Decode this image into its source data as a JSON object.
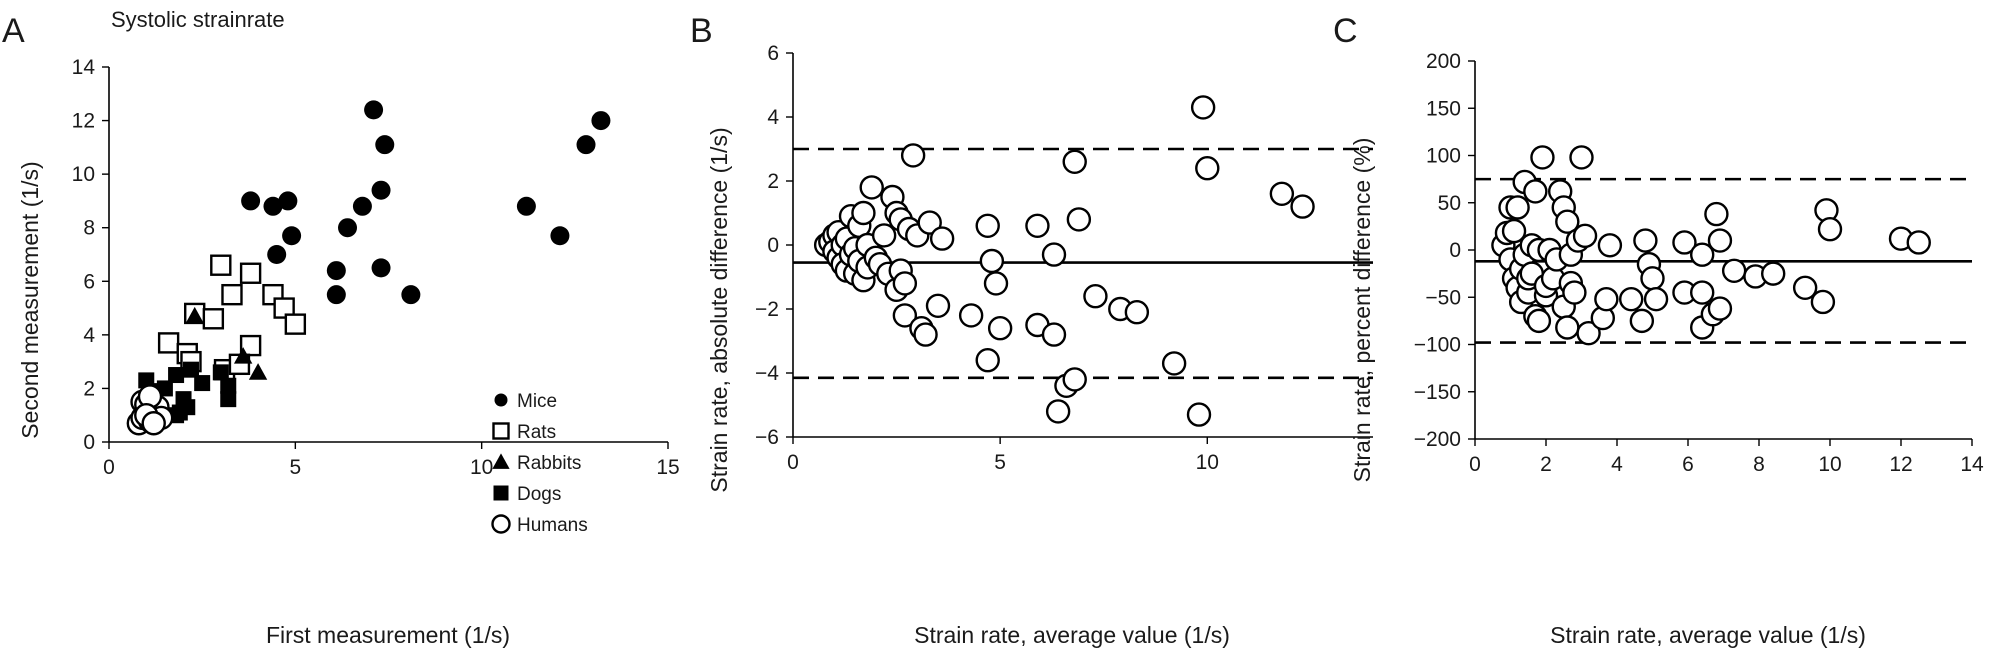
{
  "figure": {
    "background": "#ffffff",
    "ink": "#000000"
  },
  "chart_data": [
    {
      "type": "scatter",
      "panel_letter": "A",
      "title": "Systolic strainrate",
      "xlabel": "First measurement (1/s)",
      "ylabel": "Second measurement (1/s)",
      "xlim": [
        0,
        15
      ],
      "ylim": [
        0,
        14
      ],
      "x_ticks": [
        0,
        5,
        10,
        15
      ],
      "y_ticks": [
        0,
        2,
        4,
        6,
        8,
        10,
        12,
        14
      ],
      "grid": false,
      "legend_position": "bottom-right",
      "series": [
        {
          "name": "Mice",
          "marker": "filled-circle",
          "points": [
            [
              3.8,
              9.0
            ],
            [
              4.4,
              8.8
            ],
            [
              4.8,
              9.0
            ],
            [
              4.5,
              7.0
            ],
            [
              4.9,
              7.7
            ],
            [
              6.1,
              6.4
            ],
            [
              6.1,
              5.5
            ],
            [
              6.4,
              8.0
            ],
            [
              6.8,
              8.8
            ],
            [
              7.1,
              12.4
            ],
            [
              7.3,
              9.4
            ],
            [
              7.4,
              11.1
            ],
            [
              7.3,
              6.5
            ],
            [
              8.1,
              5.5
            ],
            [
              11.2,
              8.8
            ],
            [
              12.1,
              7.7
            ],
            [
              12.8,
              11.1
            ],
            [
              13.2,
              12.0
            ]
          ]
        },
        {
          "name": "Rats",
          "marker": "open-square",
          "points": [
            [
              3.0,
              6.6
            ],
            [
              3.8,
              6.3
            ],
            [
              3.3,
              5.5
            ],
            [
              4.4,
              5.5
            ],
            [
              4.7,
              5.0
            ],
            [
              5.0,
              4.4
            ],
            [
              2.3,
              4.8
            ],
            [
              2.8,
              4.6
            ],
            [
              1.6,
              3.7
            ],
            [
              2.1,
              3.3
            ],
            [
              2.2,
              3.0
            ],
            [
              3.8,
              3.6
            ],
            [
              3.1,
              2.7
            ],
            [
              3.5,
              2.9
            ]
          ]
        },
        {
          "name": "Rabbits",
          "marker": "filled-triangle",
          "points": [
            [
              2.3,
              4.7
            ],
            [
              3.6,
              3.2
            ],
            [
              4.0,
              2.6
            ]
          ]
        },
        {
          "name": "Dogs",
          "marker": "filled-square",
          "points": [
            [
              1.0,
              2.3
            ],
            [
              1.1,
              1.9
            ],
            [
              1.2,
              1.6
            ],
            [
              1.5,
              2.0
            ],
            [
              1.8,
              2.5
            ],
            [
              2.0,
              1.6
            ],
            [
              1.9,
              1.1
            ],
            [
              2.5,
              2.2
            ],
            [
              3.2,
              2.1
            ],
            [
              3.2,
              1.6
            ],
            [
              1.8,
              1.0
            ],
            [
              2.1,
              1.3
            ],
            [
              3.0,
              2.6
            ],
            [
              2.2,
              2.7
            ]
          ]
        },
        {
          "name": "Humans",
          "marker": "open-circle",
          "points": [
            [
              0.8,
              0.7
            ],
            [
              0.9,
              0.9
            ],
            [
              1.0,
              1.2
            ],
            [
              1.1,
              0.8
            ],
            [
              1.2,
              1.0
            ],
            [
              0.9,
              1.5
            ],
            [
              1.0,
              1.4
            ],
            [
              1.3,
              1.3
            ],
            [
              1.1,
              1.7
            ],
            [
              1.4,
              0.9
            ],
            [
              1.0,
              1.0
            ],
            [
              1.2,
              0.7
            ]
          ]
        }
      ]
    },
    {
      "type": "scatter",
      "panel_letter": "B",
      "title": "",
      "xlabel": "Strain rate, average value (1/s)",
      "ylabel": "Strain rate, absolute difference (1/s)",
      "xlim": [
        0,
        14
      ],
      "ylim": [
        -6,
        6
      ],
      "x_ticks": [
        0,
        5,
        10
      ],
      "y_ticks": [
        -6,
        -4,
        -2,
        0,
        2,
        4,
        6
      ],
      "grid": false,
      "reference_lines": [
        {
          "y": 3.0,
          "style": "dashed"
        },
        {
          "y": -0.55,
          "style": "solid"
        },
        {
          "y": -4.15,
          "style": "dashed"
        }
      ],
      "series": [
        {
          "marker": "open-circle",
          "points": [
            [
              0.8,
              0.0
            ],
            [
              0.9,
              0.1
            ],
            [
              1.0,
              0.3
            ],
            [
              1.1,
              0.4
            ],
            [
              1.0,
              -0.2
            ],
            [
              1.1,
              -0.4
            ],
            [
              1.2,
              0.0
            ],
            [
              1.2,
              -0.6
            ],
            [
              1.3,
              0.2
            ],
            [
              1.3,
              -0.8
            ],
            [
              1.4,
              -0.3
            ],
            [
              1.4,
              0.9
            ],
            [
              1.5,
              -0.1
            ],
            [
              1.5,
              -0.9
            ],
            [
              1.6,
              0.6
            ],
            [
              1.6,
              -0.5
            ],
            [
              1.7,
              1.0
            ],
            [
              1.7,
              -1.1
            ],
            [
              1.8,
              -0.7
            ],
            [
              1.8,
              0.0
            ],
            [
              1.9,
              1.8
            ],
            [
              2.0,
              -0.4
            ],
            [
              2.1,
              -0.6
            ],
            [
              2.2,
              0.3
            ],
            [
              2.3,
              -0.9
            ],
            [
              2.4,
              1.5
            ],
            [
              2.5,
              1.0
            ],
            [
              2.5,
              -1.4
            ],
            [
              2.6,
              0.8
            ],
            [
              2.6,
              -0.8
            ],
            [
              2.7,
              -1.2
            ],
            [
              2.7,
              -2.2
            ],
            [
              2.8,
              0.5
            ],
            [
              2.9,
              2.8
            ],
            [
              3.0,
              0.3
            ],
            [
              3.1,
              -2.6
            ],
            [
              3.2,
              -2.8
            ],
            [
              3.3,
              0.7
            ],
            [
              3.5,
              -1.9
            ],
            [
              3.6,
              0.2
            ],
            [
              4.3,
              -2.2
            ],
            [
              4.7,
              0.6
            ],
            [
              4.7,
              -3.6
            ],
            [
              4.8,
              -0.5
            ],
            [
              4.9,
              -1.2
            ],
            [
              5.0,
              -2.6
            ],
            [
              5.9,
              0.6
            ],
            [
              5.9,
              -2.5
            ],
            [
              6.3,
              -0.3
            ],
            [
              6.3,
              -2.8
            ],
            [
              6.4,
              -5.2
            ],
            [
              6.6,
              -4.4
            ],
            [
              6.8,
              2.6
            ],
            [
              6.8,
              -4.2
            ],
            [
              6.9,
              0.8
            ],
            [
              7.3,
              -1.6
            ],
            [
              7.9,
              -2.0
            ],
            [
              8.3,
              -2.1
            ],
            [
              9.2,
              -3.7
            ],
            [
              9.8,
              -5.3
            ],
            [
              9.9,
              4.3
            ],
            [
              10.0,
              2.4
            ],
            [
              11.8,
              1.6
            ],
            [
              12.3,
              1.2
            ]
          ]
        }
      ]
    },
    {
      "type": "scatter",
      "panel_letter": "C",
      "title": "",
      "xlabel": "Strain rate, average value (1/s)",
      "ylabel": "Strain rate, percent difference (%)",
      "xlim": [
        0,
        14
      ],
      "ylim": [
        -200,
        200
      ],
      "x_ticks": [
        0,
        2,
        4,
        6,
        8,
        10,
        12,
        14
      ],
      "y_ticks": [
        -200,
        -150,
        -100,
        -50,
        0,
        50,
        100,
        150,
        200
      ],
      "grid": false,
      "reference_lines": [
        {
          "y": 75,
          "style": "dashed"
        },
        {
          "y": -12,
          "style": "solid"
        },
        {
          "y": -98,
          "style": "dashed"
        }
      ],
      "series": [
        {
          "marker": "open-circle",
          "points": [
            [
              0.8,
              5
            ],
            [
              0.9,
              18
            ],
            [
              1.0,
              45
            ],
            [
              1.0,
              -10
            ],
            [
              1.1,
              -30
            ],
            [
              1.1,
              20
            ],
            [
              1.2,
              -40
            ],
            [
              1.2,
              45
            ],
            [
              1.3,
              -55
            ],
            [
              1.3,
              -20
            ],
            [
              1.4,
              72
            ],
            [
              1.4,
              -5
            ],
            [
              1.5,
              -45
            ],
            [
              1.5,
              -30
            ],
            [
              1.6,
              -25
            ],
            [
              1.6,
              5
            ],
            [
              1.7,
              62
            ],
            [
              1.7,
              -70
            ],
            [
              1.8,
              -75
            ],
            [
              1.8,
              0
            ],
            [
              1.9,
              98
            ],
            [
              2.0,
              -48
            ],
            [
              2.0,
              -38
            ],
            [
              2.1,
              0
            ],
            [
              2.2,
              -30
            ],
            [
              2.3,
              -10
            ],
            [
              2.4,
              62
            ],
            [
              2.5,
              45
            ],
            [
              2.5,
              -60
            ],
            [
              2.6,
              30
            ],
            [
              2.6,
              -82
            ],
            [
              2.7,
              -35
            ],
            [
              2.7,
              -5
            ],
            [
              2.8,
              -45
            ],
            [
              2.9,
              10
            ],
            [
              3.0,
              98
            ],
            [
              3.1,
              15
            ],
            [
              3.2,
              -88
            ],
            [
              3.6,
              -72
            ],
            [
              3.7,
              -52
            ],
            [
              3.8,
              5
            ],
            [
              4.4,
              -52
            ],
            [
              4.7,
              -75
            ],
            [
              4.8,
              10
            ],
            [
              4.9,
              -15
            ],
            [
              5.0,
              -30
            ],
            [
              5.1,
              -52
            ],
            [
              5.9,
              -45
            ],
            [
              5.9,
              8
            ],
            [
              6.4,
              -45
            ],
            [
              6.4,
              -82
            ],
            [
              6.4,
              -5
            ],
            [
              6.7,
              -68
            ],
            [
              6.8,
              38
            ],
            [
              6.9,
              10
            ],
            [
              6.9,
              -62
            ],
            [
              7.3,
              -22
            ],
            [
              7.9,
              -28
            ],
            [
              8.4,
              -25
            ],
            [
              9.3,
              -40
            ],
            [
              9.8,
              -55
            ],
            [
              9.9,
              42
            ],
            [
              10.0,
              22
            ],
            [
              12.0,
              12
            ],
            [
              12.5,
              8
            ]
          ]
        }
      ]
    }
  ]
}
